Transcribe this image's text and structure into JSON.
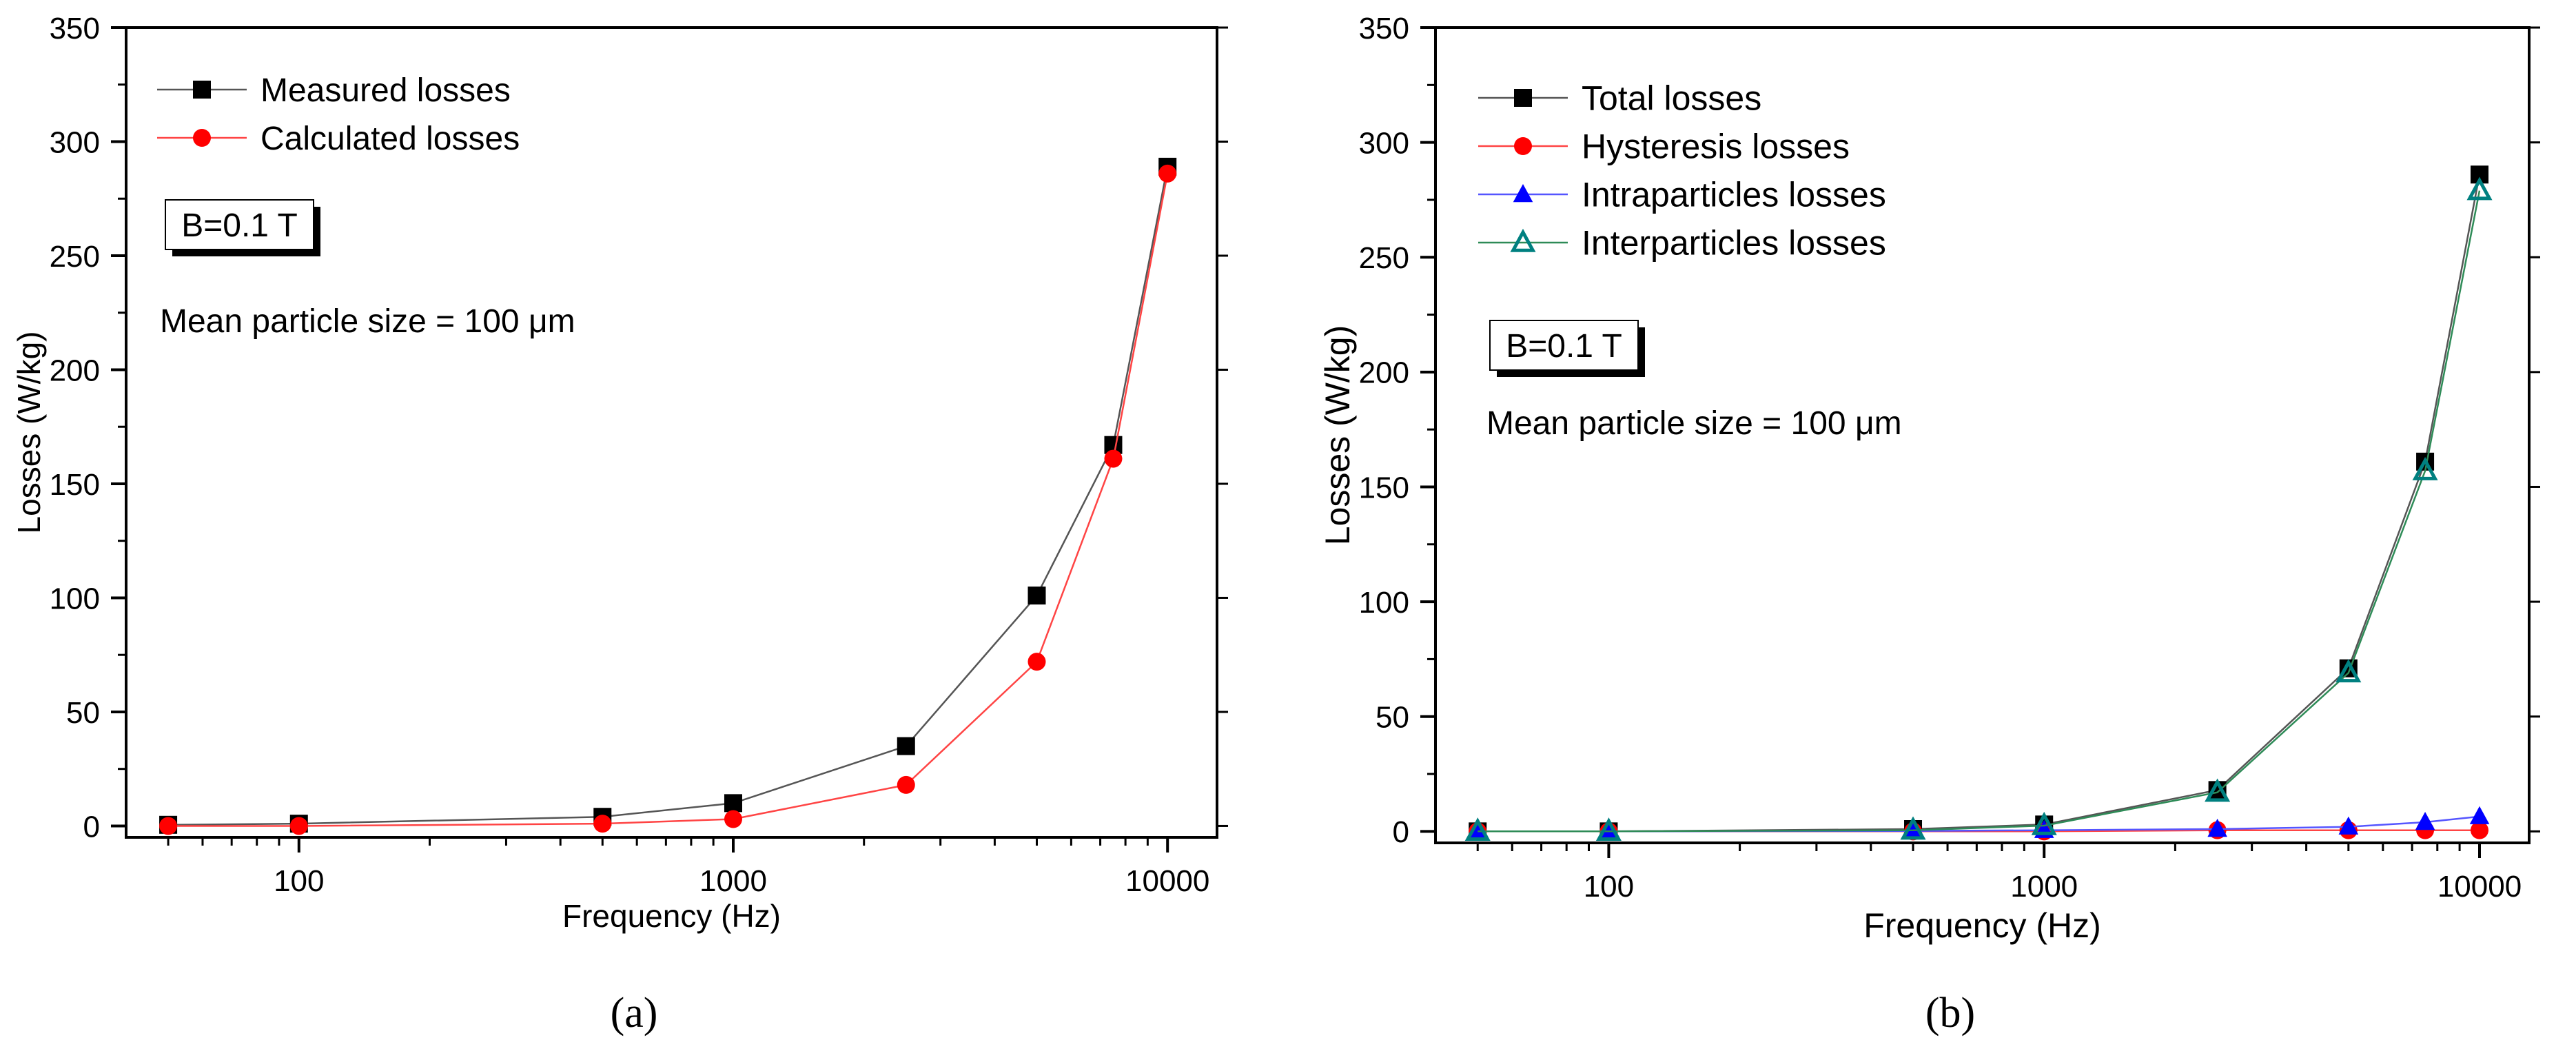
{
  "chart_data": [
    {
      "type": "line",
      "panel_label": "(a)",
      "panel_letter": "a",
      "xlabel": "Frequency (Hz)",
      "ylabel": "Losses (W/kg)",
      "xscale": "log",
      "xlim": [
        40,
        13000
      ],
      "ylim": [
        -5,
        350
      ],
      "xticks": [
        100,
        1000,
        10000
      ],
      "xtick_labels": [
        "100",
        "1000",
        "10000"
      ],
      "yticks": [
        0,
        50,
        100,
        150,
        200,
        250,
        300,
        350
      ],
      "ytick_labels": [
        "0",
        "50",
        "100",
        "150",
        "200",
        "250",
        "300",
        "350"
      ],
      "x": [
        50,
        100,
        500,
        1000,
        2500,
        5000,
        7500,
        10000
      ],
      "series": [
        {
          "name": "Measured losses",
          "marker": "square",
          "color": "#000000",
          "line_color": "#555555",
          "values": [
            0.5,
            1,
            4,
            10,
            35,
            101,
            167,
            289
          ]
        },
        {
          "name": "Calculated losses",
          "marker": "circle",
          "color": "#ff0000",
          "line_color": "#ff4444",
          "values": [
            0,
            0,
            1,
            3,
            18,
            72,
            161,
            286
          ]
        }
      ],
      "annotations": {
        "box_text": "B=0.1 T",
        "note": "Mean particle size = 100 μm"
      }
    },
    {
      "type": "line",
      "panel_label": "(b)",
      "panel_letter": "b",
      "xlabel": "Frequency (Hz)",
      "ylabel": "Losses (W/kg)",
      "xscale": "log",
      "xlim": [
        40,
        13000
      ],
      "ylim": [
        -5,
        350
      ],
      "xticks": [
        100,
        1000,
        10000
      ],
      "xtick_labels": [
        "100",
        "1000",
        "10000"
      ],
      "yticks": [
        0,
        50,
        100,
        150,
        200,
        250,
        300,
        350
      ],
      "ytick_labels": [
        "0",
        "50",
        "100",
        "150",
        "200",
        "250",
        "300",
        "350"
      ],
      "x": [
        50,
        100,
        500,
        1000,
        2500,
        5000,
        7500,
        10000
      ],
      "series": [
        {
          "name": "Total losses",
          "marker": "square",
          "color": "#000000",
          "line_color": "#555555",
          "values": [
            0,
            0,
            1,
            3,
            18,
            71,
            161,
            286
          ]
        },
        {
          "name": "Hysteresis losses",
          "marker": "circle",
          "color": "#ff0000",
          "line_color": "#ff4444",
          "values": [
            0,
            0,
            0,
            0,
            0.5,
            0.5,
            0.5,
            0.5
          ]
        },
        {
          "name": "Intraparticles losses",
          "marker": "triangle",
          "color": "#0000ff",
          "line_color": "#5555ff",
          "values": [
            0,
            0,
            0.2,
            0.5,
            1,
            2,
            4,
            6.5
          ]
        },
        {
          "name": "Interparticles losses",
          "marker": "triangle-open",
          "color": "#008080",
          "line_color": "#2e8b57",
          "values": [
            0,
            0,
            0.5,
            2.5,
            17,
            69,
            157,
            279
          ]
        }
      ],
      "annotations": {
        "box_text": "B=0.1 T",
        "note": "Mean particle size = 100 μm"
      }
    }
  ]
}
